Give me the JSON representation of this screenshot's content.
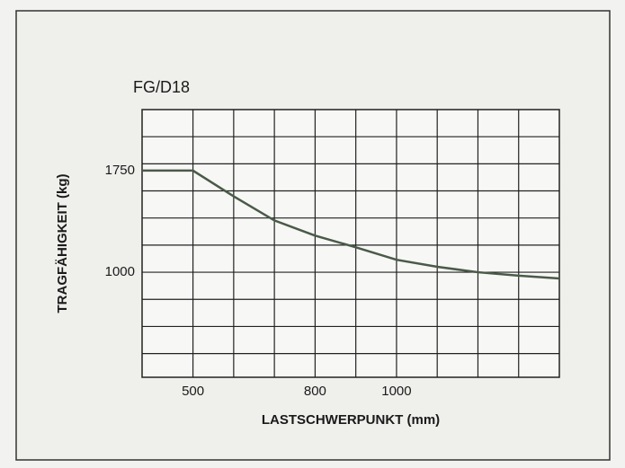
{
  "chart_data": {
    "type": "line",
    "title": "FG/D18",
    "xlabel": "LASTSCHWERPUNKT (mm)",
    "ylabel": "TRAGFÄHIGKEIT (kg)",
    "x": [
      375,
      500,
      600,
      700,
      800,
      900,
      1000,
      1100,
      1200,
      1300,
      1400
    ],
    "series": [
      {
        "name": "FG/D18",
        "color": "#4a5a48",
        "values": [
          1750,
          1750,
          1560,
          1382,
          1270,
          1184,
          1092,
          1040,
          1000,
          975,
          954
        ]
      }
    ],
    "xlim": [
      375,
      1400
    ],
    "xticks": [
      500,
      800,
      1000
    ],
    "xgrid": [
      500,
      600,
      700,
      800,
      900,
      1000,
      1100,
      1200,
      1300
    ],
    "ylim": [
      225,
      2200
    ],
    "yticks": [
      1000,
      1750
    ],
    "ygrid": [
      400,
      600,
      800,
      1000,
      1200,
      1400,
      1600,
      1800,
      2000
    ],
    "grid": true
  }
}
